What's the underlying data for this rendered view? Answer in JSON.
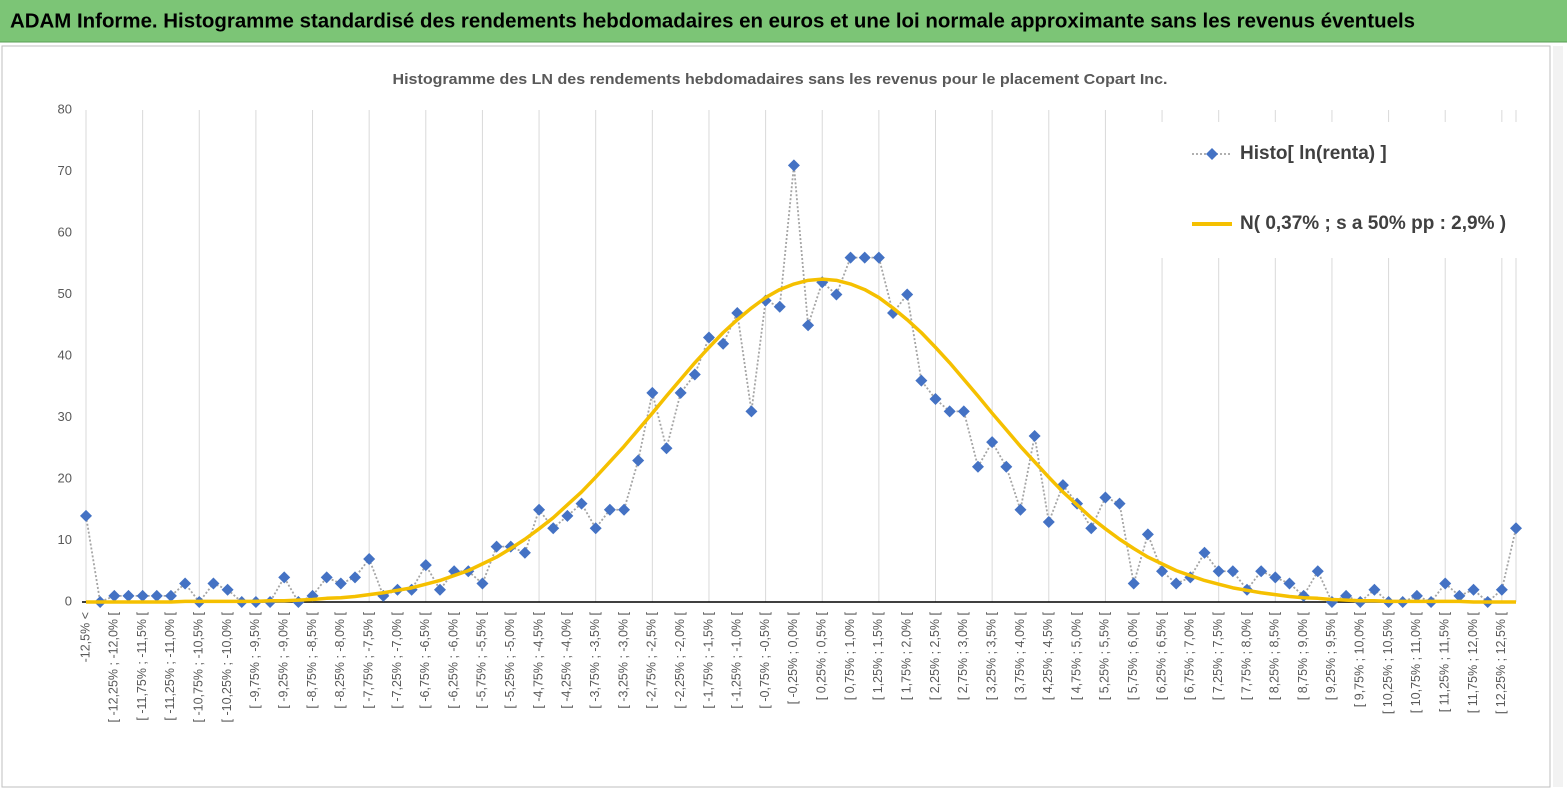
{
  "header": {
    "title": "ADAM Informe. Histogramme standardisé des rendements hebdomadaires en euros et une loi normale approximante sans les revenus éventuels"
  },
  "chart_data": {
    "type": "line",
    "title": "Histogramme  des LN des rendements hebdomadaires sans les  revenus pour le placement Copart Inc.",
    "categories": [
      "-12,5% <",
      null,
      "[ -12,25% ; -12,0% [",
      null,
      "[ -11,75% ; -11,5% [",
      null,
      "[ -11,25% ; -11,0% [",
      null,
      "[ -10,75% ; -10,5% [",
      null,
      "[ -10,25% ; -10,0% [",
      null,
      "[ -9,75% ; -9,5% [",
      null,
      "[ -9,25% ; -9,0% [",
      null,
      "[ -8,75% ; -8,5% [",
      null,
      "[ -8,25% ; -8,0% [",
      null,
      "[ -7,75% ; -7,5% [",
      null,
      "[ -7,25% ; -7,0% [",
      null,
      "[ -6,75% ; -6,5% [",
      null,
      "[ -6,25% ; -6,0% [",
      null,
      "[ -5,75% ; -5,5% [",
      null,
      "[ -5,25% ; -5,0% [",
      null,
      "[ -4,75% ; -4,5% [",
      null,
      "[ -4,25% ; -4,0% [",
      null,
      "[ -3,75% ; -3,5% [",
      null,
      "[ -3,25% ; -3,0% [",
      null,
      "[ -2,75% ; -2,5% [",
      null,
      "[ -2,25% ; -2,0% [",
      null,
      "[ -1,75% ; -1,5% [",
      null,
      "[ -1,25% ; -1,0% [",
      null,
      "[ -0,75% ; -0,5% [",
      null,
      "[ -0,25% ; 0,0% [",
      null,
      "[ 0,25% ; 0,5% [",
      null,
      "[ 0,75% ; 1,0% [",
      null,
      "[ 1,25% ; 1,5% [",
      null,
      "[ 1,75% ; 2,0% [",
      null,
      "[ 2,25% ; 2,5% [",
      null,
      "[ 2,75% ; 3,0% [",
      null,
      "[ 3,25% ; 3,5% [",
      null,
      "[ 3,75% ; 4,0% [",
      null,
      "[ 4,25% ; 4,5% [",
      null,
      "[ 4,75% ; 5,0% [",
      null,
      "[ 5,25% ; 5,5% [",
      null,
      "[ 5,75% ; 6,0% [",
      null,
      "[ 6,25% ; 6,5% [",
      null,
      "[ 6,75% ; 7,0% [",
      null,
      "[ 7,25% ; 7,5% [",
      null,
      "[ 7,75% ; 8,0% [",
      null,
      "[ 8,25% ; 8,5% [",
      null,
      "[ 8,75% ; 9,0% [",
      null,
      "[ 9,25% ; 9,5% [",
      null,
      "[ 9,75% ; 10,0% [",
      null,
      "[ 10,25% ; 10,5% [",
      null,
      "[ 10,75% ; 11,0% [",
      null,
      "[ 11,25% ; 11,5% [",
      null,
      "[ 11,75% ; 12,0% [",
      null,
      "[ 12,25% ; 12,5% [",
      null
    ],
    "series": [
      {
        "name": "Histo[ ln(renta) ]",
        "color": "#4472c4",
        "line_color": "#a5a5a5",
        "values": [
          14,
          0,
          1,
          1,
          1,
          1,
          1,
          3,
          0,
          3,
          2,
          0,
          0,
          0,
          4,
          0,
          1,
          4,
          3,
          4,
          7,
          1,
          2,
          2,
          6,
          2,
          5,
          5,
          3,
          9,
          9,
          8,
          15,
          12,
          14,
          16,
          12,
          15,
          15,
          23,
          34,
          25,
          34,
          37,
          43,
          42,
          47,
          31,
          49,
          48,
          71,
          45,
          52,
          50,
          56,
          56,
          56,
          47,
          50,
          36,
          33,
          31,
          31,
          22,
          26,
          22,
          15,
          27,
          13,
          19,
          16,
          12,
          17,
          16,
          3,
          11,
          5,
          3,
          4,
          8,
          5,
          5,
          2,
          5,
          4,
          3,
          1,
          5,
          0,
          1,
          0,
          2,
          0,
          0,
          1,
          0,
          3,
          1,
          2,
          0,
          2,
          12
        ]
      },
      {
        "name": "N( 0,37% ; s a 50% pp : 2,9% )",
        "color": "#f5c000",
        "values": [
          0,
          0,
          0,
          0,
          0,
          0,
          0,
          0.1,
          0.1,
          0.1,
          0.1,
          0.1,
          0.1,
          0.2,
          0.2,
          0.3,
          0.4,
          0.6,
          0.7,
          0.9,
          1.2,
          1.5,
          1.9,
          2.3,
          2.9,
          3.5,
          4.3,
          5.1,
          6.2,
          7.3,
          8.7,
          10.2,
          11.9,
          13.7,
          15.8,
          17.9,
          20.3,
          22.8,
          25.3,
          28.0,
          30.7,
          33.5,
          36.2,
          38.9,
          41.4,
          43.8,
          45.9,
          47.8,
          49.5,
          50.8,
          51.7,
          52.3,
          52.5,
          52.3,
          51.7,
          50.8,
          49.5,
          47.8,
          45.9,
          43.8,
          41.4,
          38.9,
          36.2,
          33.5,
          30.7,
          28.0,
          25.3,
          22.8,
          20.3,
          17.9,
          15.8,
          13.7,
          11.9,
          10.2,
          8.7,
          7.3,
          6.2,
          5.1,
          4.3,
          3.5,
          2.9,
          2.3,
          1.9,
          1.5,
          1.2,
          0.9,
          0.7,
          0.6,
          0.4,
          0.3,
          0.2,
          0.2,
          0.1,
          0.1,
          0.1,
          0.1,
          0.1,
          0.1,
          0,
          0,
          0,
          0
        ]
      }
    ],
    "ylim": [
      0,
      80
    ],
    "yticks": [
      0,
      10,
      20,
      30,
      40,
      50,
      60,
      70,
      80
    ],
    "grid": true,
    "legend": "upper right"
  }
}
